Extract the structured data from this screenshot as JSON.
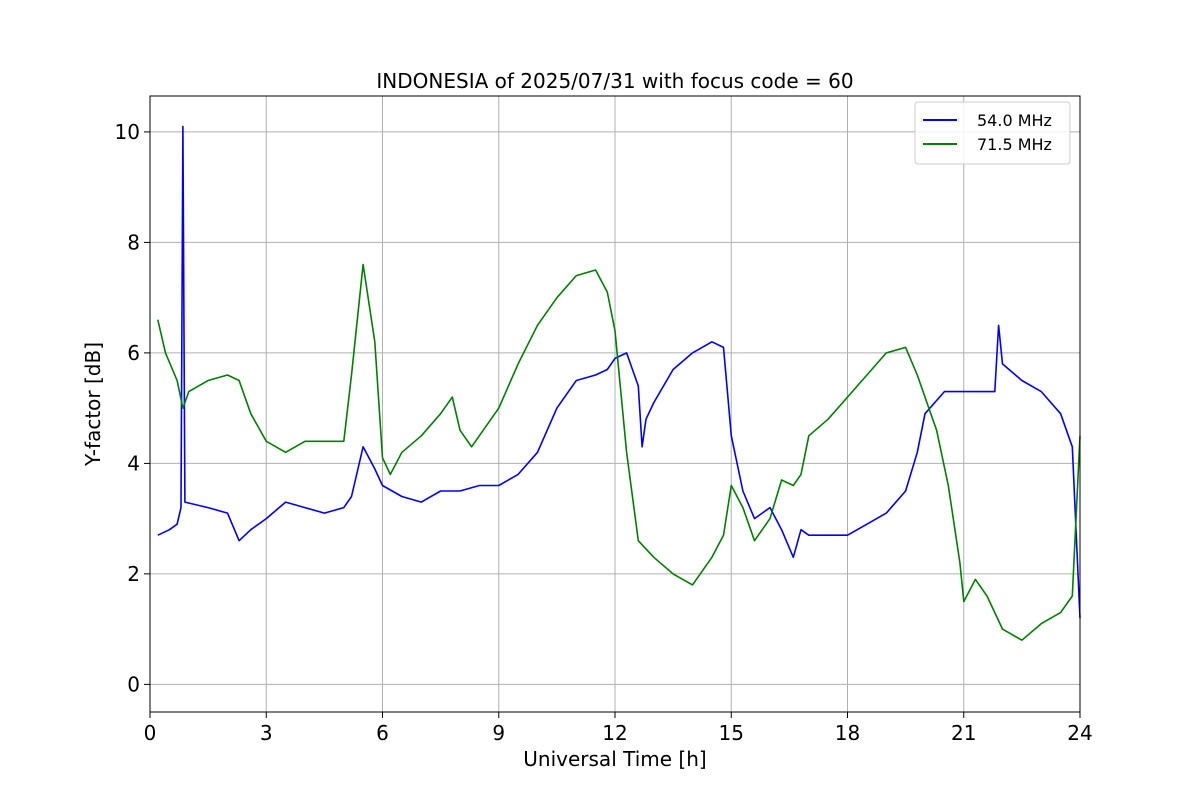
{
  "chart_data": {
    "type": "line",
    "title": "INDONESIA of 2025/07/31 with focus code = 60",
    "xlabel": "Universal Time [h]",
    "ylabel": "Y-factor [dB]",
    "xlim": [
      0,
      24
    ],
    "ylim": [
      -0.5,
      10.65
    ],
    "xticks": [
      0,
      3,
      6,
      9,
      12,
      15,
      18,
      21,
      24
    ],
    "yticks": [
      0,
      2,
      4,
      6,
      8,
      10
    ],
    "grid": true,
    "legend_position": "top-right",
    "series": [
      {
        "name": "54.0 MHz",
        "color": "#0000ff",
        "x": [
          0.2,
          0.5,
          0.7,
          0.8,
          0.85,
          0.9,
          1.5,
          2.0,
          2.3,
          2.6,
          3.0,
          3.5,
          4.0,
          4.5,
          5.0,
          5.2,
          5.5,
          5.8,
          6.0,
          6.5,
          7.0,
          7.5,
          8.0,
          8.5,
          9.0,
          9.5,
          10.0,
          10.5,
          11.0,
          11.5,
          11.8,
          12.0,
          12.3,
          12.6,
          12.7,
          12.8,
          13.0,
          13.5,
          14.0,
          14.5,
          14.8,
          15.0,
          15.3,
          15.6,
          16.0,
          16.3,
          16.6,
          16.8,
          17.0,
          17.5,
          18.0,
          18.5,
          19.0,
          19.5,
          19.8,
          20.0,
          20.5,
          21.0,
          21.5,
          21.8,
          21.9,
          22.0,
          22.5,
          23.0,
          23.5,
          23.8,
          24.0
        ],
        "values": [
          2.7,
          2.8,
          2.9,
          3.2,
          10.1,
          3.3,
          3.2,
          3.1,
          2.6,
          2.8,
          3.0,
          3.3,
          3.2,
          3.1,
          3.2,
          3.4,
          4.3,
          3.9,
          3.6,
          3.4,
          3.3,
          3.5,
          3.5,
          3.6,
          3.6,
          3.8,
          4.2,
          5.0,
          5.5,
          5.6,
          5.7,
          5.9,
          6.0,
          5.4,
          4.3,
          4.8,
          5.1,
          5.7,
          6.0,
          6.2,
          6.1,
          4.5,
          3.5,
          3.0,
          3.2,
          2.8,
          2.3,
          2.8,
          2.7,
          2.7,
          2.7,
          2.9,
          3.1,
          3.5,
          4.2,
          4.9,
          5.3,
          5.3,
          5.3,
          5.3,
          6.5,
          5.8,
          5.5,
          5.3,
          4.9,
          4.3,
          1.2
        ]
      },
      {
        "name": "71.5 MHz",
        "color": "#008000",
        "x": [
          0.2,
          0.4,
          0.7,
          0.85,
          1.0,
          1.5,
          2.0,
          2.3,
          2.6,
          3.0,
          3.5,
          4.0,
          4.5,
          5.0,
          5.2,
          5.5,
          5.8,
          6.0,
          6.2,
          6.5,
          7.0,
          7.5,
          7.8,
          8.0,
          8.3,
          8.7,
          9.0,
          9.5,
          10.0,
          10.5,
          11.0,
          11.5,
          11.8,
          12.0,
          12.3,
          12.6,
          13.0,
          13.5,
          14.0,
          14.5,
          14.8,
          15.0,
          15.3,
          15.6,
          16.0,
          16.3,
          16.6,
          16.8,
          17.0,
          17.5,
          18.0,
          18.5,
          19.0,
          19.5,
          19.8,
          20.0,
          20.3,
          20.6,
          20.9,
          21.0,
          21.3,
          21.6,
          22.0,
          22.5,
          23.0,
          23.5,
          23.8,
          24.0
        ],
        "values": [
          6.6,
          6.0,
          5.5,
          5.0,
          5.3,
          5.5,
          5.6,
          5.5,
          4.9,
          4.4,
          4.2,
          4.4,
          4.4,
          4.4,
          5.6,
          7.6,
          6.2,
          4.1,
          3.8,
          4.2,
          4.5,
          4.9,
          5.2,
          4.6,
          4.3,
          4.7,
          5.0,
          5.8,
          6.5,
          7.0,
          7.4,
          7.5,
          7.1,
          6.4,
          4.2,
          2.6,
          2.3,
          2.0,
          1.8,
          2.3,
          2.7,
          3.6,
          3.2,
          2.6,
          3.0,
          3.7,
          3.6,
          3.8,
          4.5,
          4.8,
          5.2,
          5.6,
          6.0,
          6.1,
          5.6,
          5.2,
          4.6,
          3.6,
          2.2,
          1.5,
          1.9,
          1.6,
          1.0,
          0.8,
          1.1,
          1.3,
          1.6,
          4.5
        ]
      }
    ]
  }
}
